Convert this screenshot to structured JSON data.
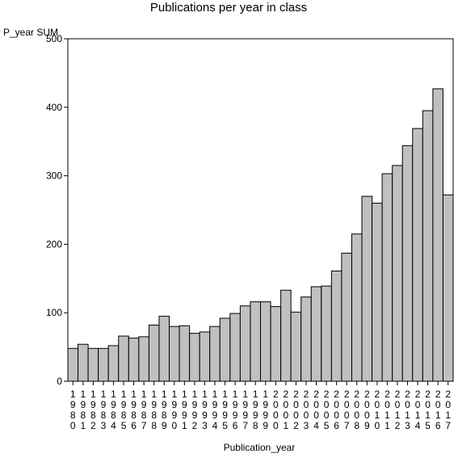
{
  "chart_data": {
    "type": "bar",
    "title": "Publications per year in class",
    "ylabel": "P_year SUM",
    "xlabel": "Publication_year",
    "ylim": [
      0,
      500
    ],
    "yticks": [
      0,
      100,
      200,
      300,
      400,
      500
    ],
    "grid": false,
    "categories": [
      "1980",
      "1981",
      "1982",
      "1983",
      "1984",
      "1985",
      "1986",
      "1987",
      "1988",
      "1989",
      "1990",
      "1991",
      "1992",
      "1993",
      "1994",
      "1995",
      "1996",
      "1997",
      "1998",
      "1999",
      "2000",
      "2001",
      "2002",
      "2003",
      "2004",
      "2005",
      "2006",
      "2007",
      "2008",
      "2009",
      "2010",
      "2011",
      "2012",
      "2013",
      "2014",
      "2015",
      "2016",
      "2017"
    ],
    "values": [
      48,
      54,
      48,
      48,
      52,
      66,
      63,
      65,
      82,
      95,
      80,
      81,
      70,
      72,
      80,
      92,
      99,
      110,
      116,
      116,
      109,
      133,
      101,
      123,
      138,
      139,
      161,
      187,
      215,
      270,
      260,
      303,
      315,
      344,
      369,
      395,
      427,
      272
    ],
    "bar_color": "#c0c0c0"
  }
}
